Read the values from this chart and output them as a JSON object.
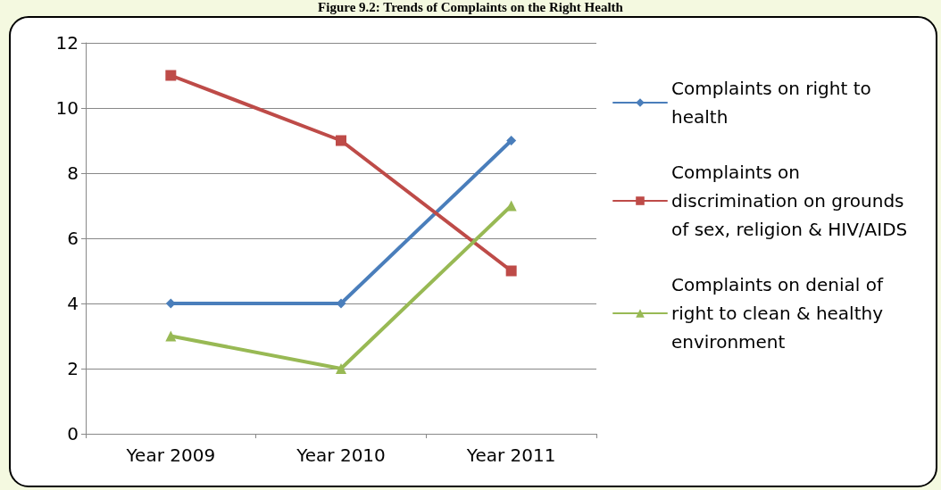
{
  "chart_data": {
    "type": "line",
    "title": "Figure 9.2: Trends of Complaints on the Right Health",
    "categories": [
      "Year 2009",
      "Year 2010",
      "Year 2011"
    ],
    "series": [
      {
        "name": "Complaints on right to health",
        "color": "#4a7ebb",
        "values": [
          4,
          4,
          9
        ],
        "marker": "diamond"
      },
      {
        "name": "Complaints on discrimination on grounds of sex, religion & HIV/AIDS",
        "color": "#be4b48",
        "values": [
          11,
          9,
          5
        ],
        "marker": "square"
      },
      {
        "name": "Complaints on denial of right to clean & healthy environment",
        "color": "#98b954",
        "values": [
          3,
          2,
          7
        ],
        "marker": "triangle"
      }
    ],
    "ylim": [
      0,
      12
    ],
    "yticks": [
      0,
      2,
      4,
      6,
      8,
      10,
      12
    ],
    "grid": "y",
    "legend": "right",
    "line_style": "solid"
  }
}
